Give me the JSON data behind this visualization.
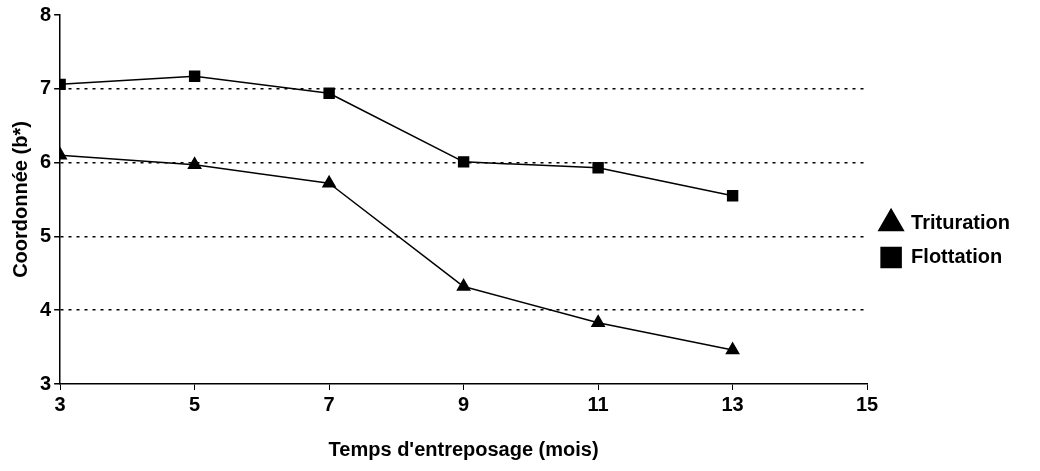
{
  "chart_data": {
    "type": "line",
    "xlabel": "Temps d'entreposage (mois)",
    "ylabel": "Coordonnée (b*)",
    "x": [
      3,
      5,
      7,
      9,
      11,
      13
    ],
    "series": [
      {
        "name": "Trituration",
        "color": "#000000",
        "marker": "triangle",
        "values": [
          6.1,
          5.97,
          5.72,
          4.32,
          3.83,
          3.46
        ]
      },
      {
        "name": "Flottation",
        "color": "#000000",
        "marker": "square",
        "values": [
          7.06,
          7.17,
          6.94,
          6.01,
          5.93,
          5.55
        ]
      }
    ],
    "xlim": [
      3,
      15
    ],
    "xticks": [
      3,
      5,
      7,
      9,
      11,
      13,
      15
    ],
    "ylim": [
      3,
      8
    ],
    "yticks": [
      3,
      4,
      5,
      6,
      7,
      8
    ],
    "grid": "y",
    "legend": "right",
    "line_style": "solid"
  }
}
